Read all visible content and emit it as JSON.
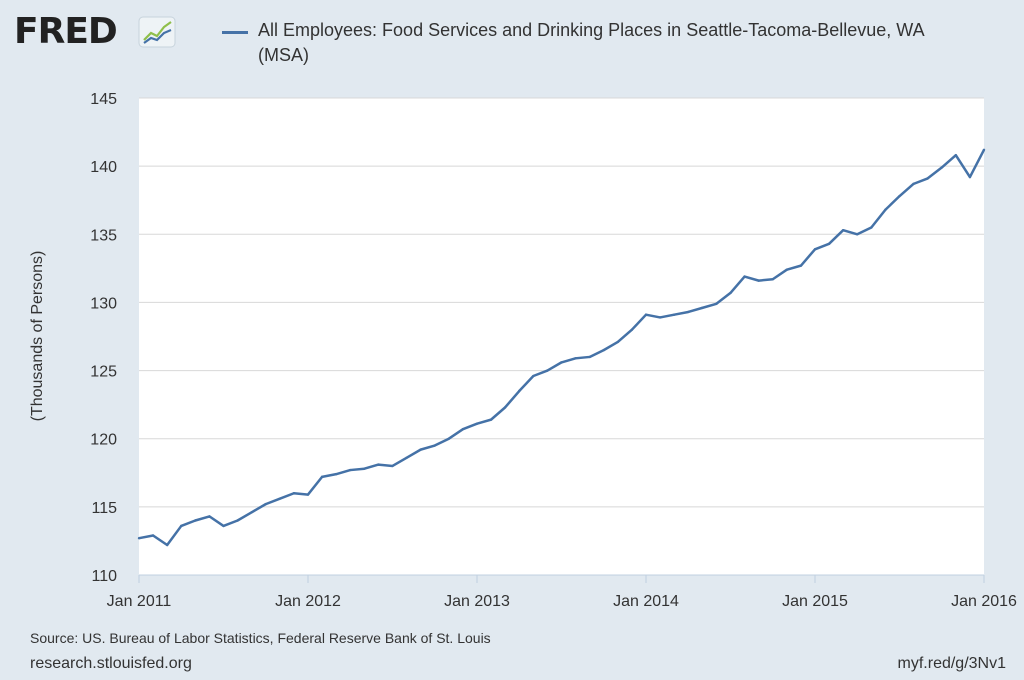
{
  "logo": {
    "text": "FRED",
    "icon": "fred-trend-icon"
  },
  "legend": {
    "label": "All Employees: Food Services and Drinking Places in Seattle-Tacoma-Bellevue, WA (MSA)",
    "color": "#4572a7"
  },
  "chart_data": {
    "type": "line",
    "title": "",
    "xlabel": "",
    "ylabel": "(Thousands of Persons)",
    "ylim": [
      110,
      145
    ],
    "yticks": [
      110,
      115,
      120,
      125,
      130,
      135,
      140,
      145
    ],
    "xlim": [
      "2011-01",
      "2016-01"
    ],
    "xtick_labels": [
      "Jan 2011",
      "Jan 2012",
      "Jan 2013",
      "Jan 2014",
      "Jan 2015",
      "Jan 2016"
    ],
    "grid": true,
    "series": [
      {
        "name": "All Employees: Food Services and Drinking Places in Seattle-Tacoma-Bellevue, WA (MSA)",
        "color": "#4572a7",
        "x": [
          "2011-01",
          "2011-02",
          "2011-03",
          "2011-04",
          "2011-05",
          "2011-06",
          "2011-07",
          "2011-08",
          "2011-09",
          "2011-10",
          "2011-11",
          "2011-12",
          "2012-01",
          "2012-02",
          "2012-03",
          "2012-04",
          "2012-05",
          "2012-06",
          "2012-07",
          "2012-08",
          "2012-09",
          "2012-10",
          "2012-11",
          "2012-12",
          "2013-01",
          "2013-02",
          "2013-03",
          "2013-04",
          "2013-05",
          "2013-06",
          "2013-07",
          "2013-08",
          "2013-09",
          "2013-10",
          "2013-11",
          "2013-12",
          "2014-01",
          "2014-02",
          "2014-03",
          "2014-04",
          "2014-05",
          "2014-06",
          "2014-07",
          "2014-08",
          "2014-09",
          "2014-10",
          "2014-11",
          "2014-12",
          "2015-01",
          "2015-02",
          "2015-03",
          "2015-04",
          "2015-05",
          "2015-06",
          "2015-07",
          "2015-08",
          "2015-09",
          "2015-10",
          "2015-11",
          "2015-12",
          "2016-01"
        ],
        "values": [
          112.7,
          112.9,
          112.2,
          113.6,
          114.0,
          114.3,
          113.6,
          114.0,
          114.6,
          115.2,
          115.6,
          116.0,
          115.9,
          117.2,
          117.4,
          117.7,
          117.8,
          118.1,
          118.0,
          118.6,
          119.2,
          119.5,
          120.0,
          120.7,
          121.1,
          121.4,
          122.3,
          123.5,
          124.6,
          125.0,
          125.6,
          125.9,
          126.0,
          126.5,
          127.1,
          128.0,
          129.1,
          128.9,
          129.1,
          129.3,
          129.6,
          129.9,
          130.7,
          131.9,
          131.6,
          131.7,
          132.4,
          132.7,
          133.9,
          134.3,
          135.3,
          135.0,
          135.5,
          136.8,
          137.8,
          138.7,
          139.1,
          139.9,
          140.8,
          139.2,
          141.2
        ]
      }
    ]
  },
  "footer": {
    "source": "Source: US. Bureau of Labor Statistics, Federal Reserve Bank of St. Louis",
    "site": "research.stlouisfed.org",
    "short_url": "myf.red/g/3Nv1"
  }
}
